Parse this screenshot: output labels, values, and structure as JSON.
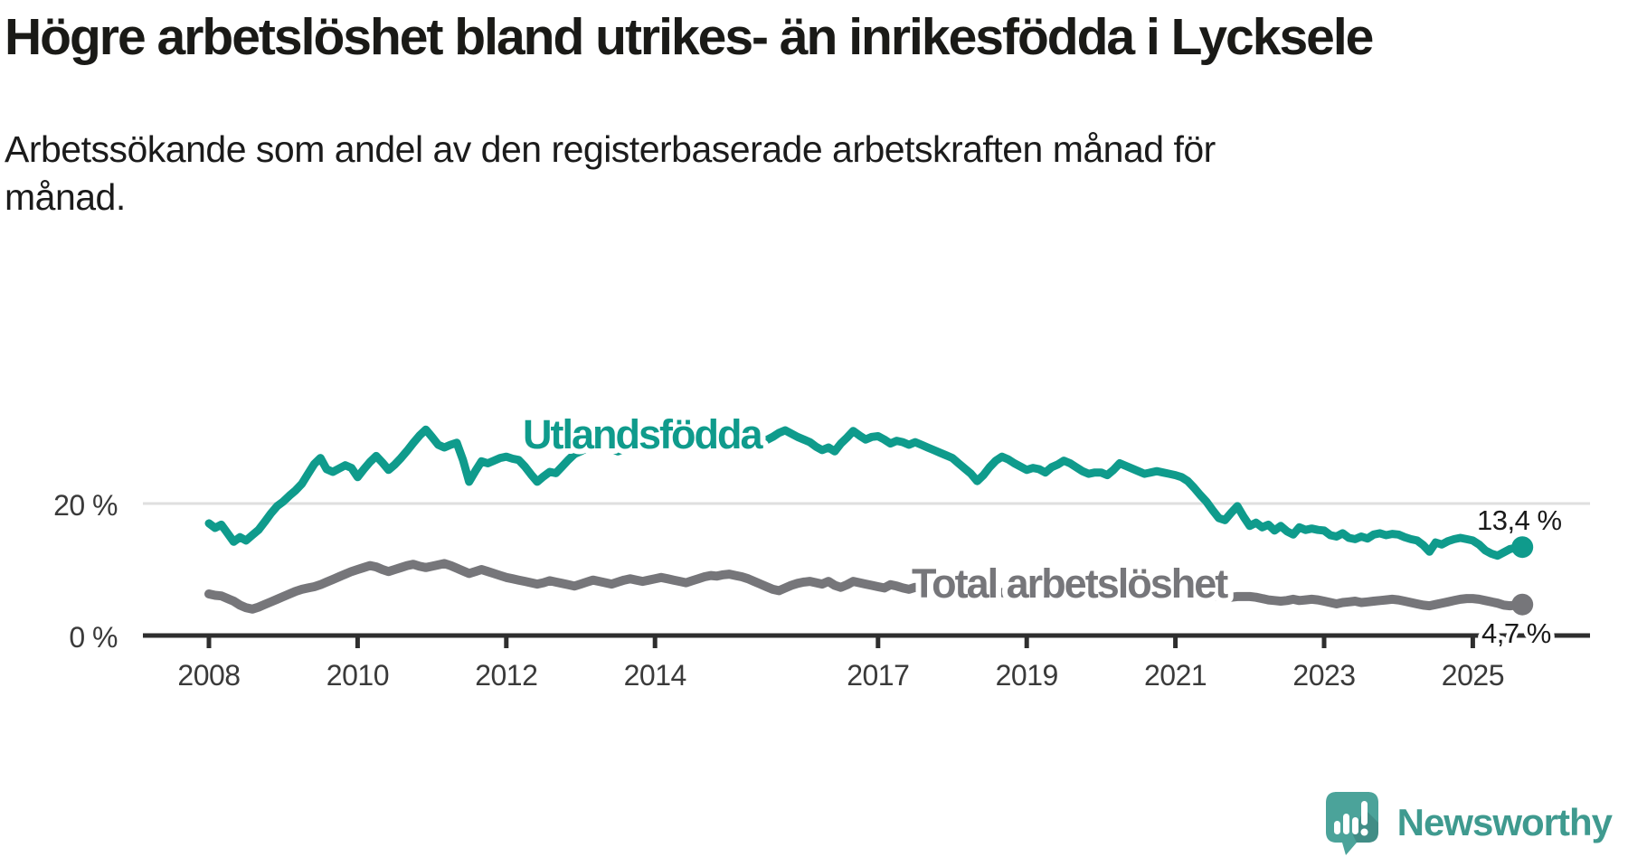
{
  "header": {
    "title": "Högre arbetslöshet bland utrikes- än inrikesfödda i Lycksele",
    "subtitle": "Arbetssökande som andel av den registerbaserade arbetskraften månad för månad."
  },
  "chart_data": {
    "type": "line",
    "title": "Högre arbetslöshet bland utrikes- än inrikesfödda i Lycksele",
    "subtitle": "Arbetssökande som andel av den registerbaserade arbetskraften månad för månad.",
    "x": {
      "start": "2008-01",
      "end": "2025-09",
      "tick_years": [
        2008,
        2010,
        2012,
        2014,
        2017,
        2019,
        2021,
        2023,
        2025
      ]
    },
    "y": {
      "unit": "%",
      "range": [
        0,
        34
      ],
      "gridline_at": 20,
      "ticks": [
        {
          "value": 0,
          "label": "0 %"
        },
        {
          "value": 20,
          "label": "20 %"
        }
      ]
    },
    "legend": "inline-labels",
    "grid": "single-horizontal-at-20",
    "series": [
      {
        "name": "Utlandsfödda",
        "color": "#0f9b8c",
        "end_value": 13.4,
        "end_label": "13,4 %",
        "values": [
          17.0,
          16.3,
          16.8,
          15.5,
          14.2,
          14.9,
          14.4,
          15.2,
          16.0,
          17.2,
          18.5,
          19.6,
          20.3,
          21.2,
          22.0,
          23.0,
          24.5,
          26.0,
          26.9,
          25.2,
          24.8,
          25.3,
          25.8,
          25.4,
          24.0,
          25.2,
          26.3,
          27.2,
          26.2,
          25.1,
          25.9,
          26.9,
          28.0,
          29.2,
          30.3,
          31.2,
          30.1,
          28.9,
          28.5,
          28.9,
          29.2,
          26.6,
          23.3,
          24.9,
          26.4,
          26.1,
          26.5,
          26.9,
          27.1,
          26.8,
          26.6,
          25.6,
          24.4,
          23.3,
          24.1,
          24.8,
          24.6,
          25.6,
          26.6,
          27.5,
          27.9,
          28.4,
          28.9,
          29.2,
          28.9,
          28.3,
          27.9,
          28.3,
          28.7,
          28.9,
          28.7,
          29.0,
          29.6,
          30.4,
          31.0,
          29.6,
          28.6,
          28.9,
          29.3,
          29.7,
          29.4,
          29.1,
          29.5,
          29.9,
          30.3,
          30.9,
          31.5,
          31.1,
          30.5,
          29.9,
          29.6,
          30.1,
          30.7,
          31.1,
          30.6,
          30.1,
          29.7,
          29.3,
          28.6,
          28.1,
          28.5,
          27.9,
          29.1,
          30.0,
          31.0,
          30.3,
          29.7,
          30.1,
          30.2,
          29.7,
          29.1,
          29.5,
          29.3,
          28.9,
          29.3,
          28.9,
          28.5,
          28.1,
          27.7,
          27.3,
          26.9,
          26.1,
          25.3,
          24.5,
          23.4,
          24.3,
          25.5,
          26.5,
          27.1,
          26.7,
          26.1,
          25.6,
          25.1,
          25.4,
          25.2,
          24.7,
          25.5,
          25.9,
          26.5,
          26.1,
          25.5,
          24.9,
          24.5,
          24.7,
          24.7,
          24.3,
          25.1,
          26.1,
          25.7,
          25.3,
          24.9,
          24.5,
          24.7,
          24.9,
          24.7,
          24.5,
          24.3,
          24.0,
          23.4,
          22.4,
          21.3,
          20.3,
          19.0,
          17.8,
          17.5,
          18.6,
          19.6,
          18.0,
          16.6,
          17.1,
          16.4,
          16.8,
          15.9,
          16.6,
          15.8,
          15.3,
          16.4,
          16.0,
          16.2,
          16.0,
          15.9,
          15.2,
          15.0,
          15.5,
          14.8,
          14.6,
          15.0,
          14.7,
          15.3,
          15.5,
          15.2,
          15.4,
          15.3,
          14.9,
          14.6,
          14.4,
          13.7,
          12.7,
          14.1,
          13.8,
          14.3,
          14.6,
          14.8,
          14.6,
          14.4,
          13.8,
          12.9,
          12.4,
          12.1,
          12.6,
          13.1,
          13.3,
          13.4
        ]
      },
      {
        "name": "Total arbetslöshet",
        "color": "#76767a",
        "end_value": 4.7,
        "end_label": "4,7 %",
        "values": [
          6.3,
          6.1,
          6.0,
          5.6,
          5.2,
          4.6,
          4.2,
          4.0,
          4.3,
          4.7,
          5.1,
          5.5,
          5.9,
          6.3,
          6.7,
          7.0,
          7.2,
          7.4,
          7.7,
          8.1,
          8.5,
          8.9,
          9.3,
          9.7,
          10.0,
          10.3,
          10.6,
          10.4,
          10.0,
          9.7,
          10.0,
          10.3,
          10.6,
          10.8,
          10.5,
          10.3,
          10.5,
          10.7,
          10.9,
          10.6,
          10.2,
          9.8,
          9.4,
          9.7,
          10.0,
          9.7,
          9.4,
          9.1,
          8.8,
          8.6,
          8.4,
          8.2,
          8.0,
          7.8,
          8.0,
          8.3,
          8.1,
          7.9,
          7.7,
          7.5,
          7.8,
          8.1,
          8.4,
          8.2,
          8.0,
          7.8,
          8.1,
          8.4,
          8.6,
          8.4,
          8.2,
          8.4,
          8.6,
          8.8,
          8.6,
          8.4,
          8.2,
          8.0,
          8.3,
          8.6,
          8.9,
          9.1,
          9.0,
          9.2,
          9.3,
          9.1,
          8.9,
          8.6,
          8.2,
          7.8,
          7.4,
          7.0,
          6.8,
          7.2,
          7.6,
          7.9,
          8.1,
          8.2,
          8.0,
          7.8,
          8.2,
          7.6,
          7.3,
          7.7,
          8.2,
          8.0,
          7.8,
          7.6,
          7.4,
          7.2,
          7.7,
          7.5,
          7.2,
          7.0,
          7.3,
          7.1,
          6.9,
          6.8,
          6.9,
          7.0,
          6.8,
          6.6,
          6.4,
          6.2,
          6.0,
          6.2,
          6.5,
          6.7,
          6.5,
          6.3,
          6.2,
          6.4,
          6.3,
          6.2,
          6.1,
          6.0,
          6.1,
          6.3,
          6.5,
          6.4,
          6.2,
          6.1,
          6.2,
          6.4,
          6.5,
          6.6,
          7.2,
          8.2,
          8.6,
          8.8,
          8.6,
          8.3,
          8.0,
          7.8,
          7.6,
          7.4,
          7.2,
          7.0,
          6.8,
          6.6,
          6.4,
          6.2,
          6.0,
          5.9,
          5.8,
          5.8,
          5.9,
          5.9,
          5.9,
          5.8,
          5.6,
          5.4,
          5.3,
          5.2,
          5.3,
          5.5,
          5.3,
          5.4,
          5.5,
          5.4,
          5.2,
          5.0,
          4.8,
          5.0,
          5.1,
          5.2,
          5.0,
          5.1,
          5.2,
          5.3,
          5.4,
          5.5,
          5.4,
          5.2,
          5.0,
          4.8,
          4.6,
          4.5,
          4.7,
          4.9,
          5.1,
          5.3,
          5.5,
          5.6,
          5.6,
          5.5,
          5.3,
          5.1,
          4.9,
          4.6,
          4.5,
          4.6,
          4.7
        ]
      }
    ]
  },
  "branding": {
    "logo_text": "Newsworthy",
    "logo_icon": "speech-bubble-bar-chart-exclamation-icon",
    "logo_text_color": "#3f9a8f",
    "logo_bubble_color": "#4ba39a"
  },
  "colors": {
    "background": "#ffffff",
    "title_text": "#1a1a17",
    "axis": "#2e2e2e",
    "gridline": "#dfdfdf",
    "tick_text": "#3a3a3a",
    "series_teal": "#0f9b8c",
    "series_gray": "#76767a"
  }
}
